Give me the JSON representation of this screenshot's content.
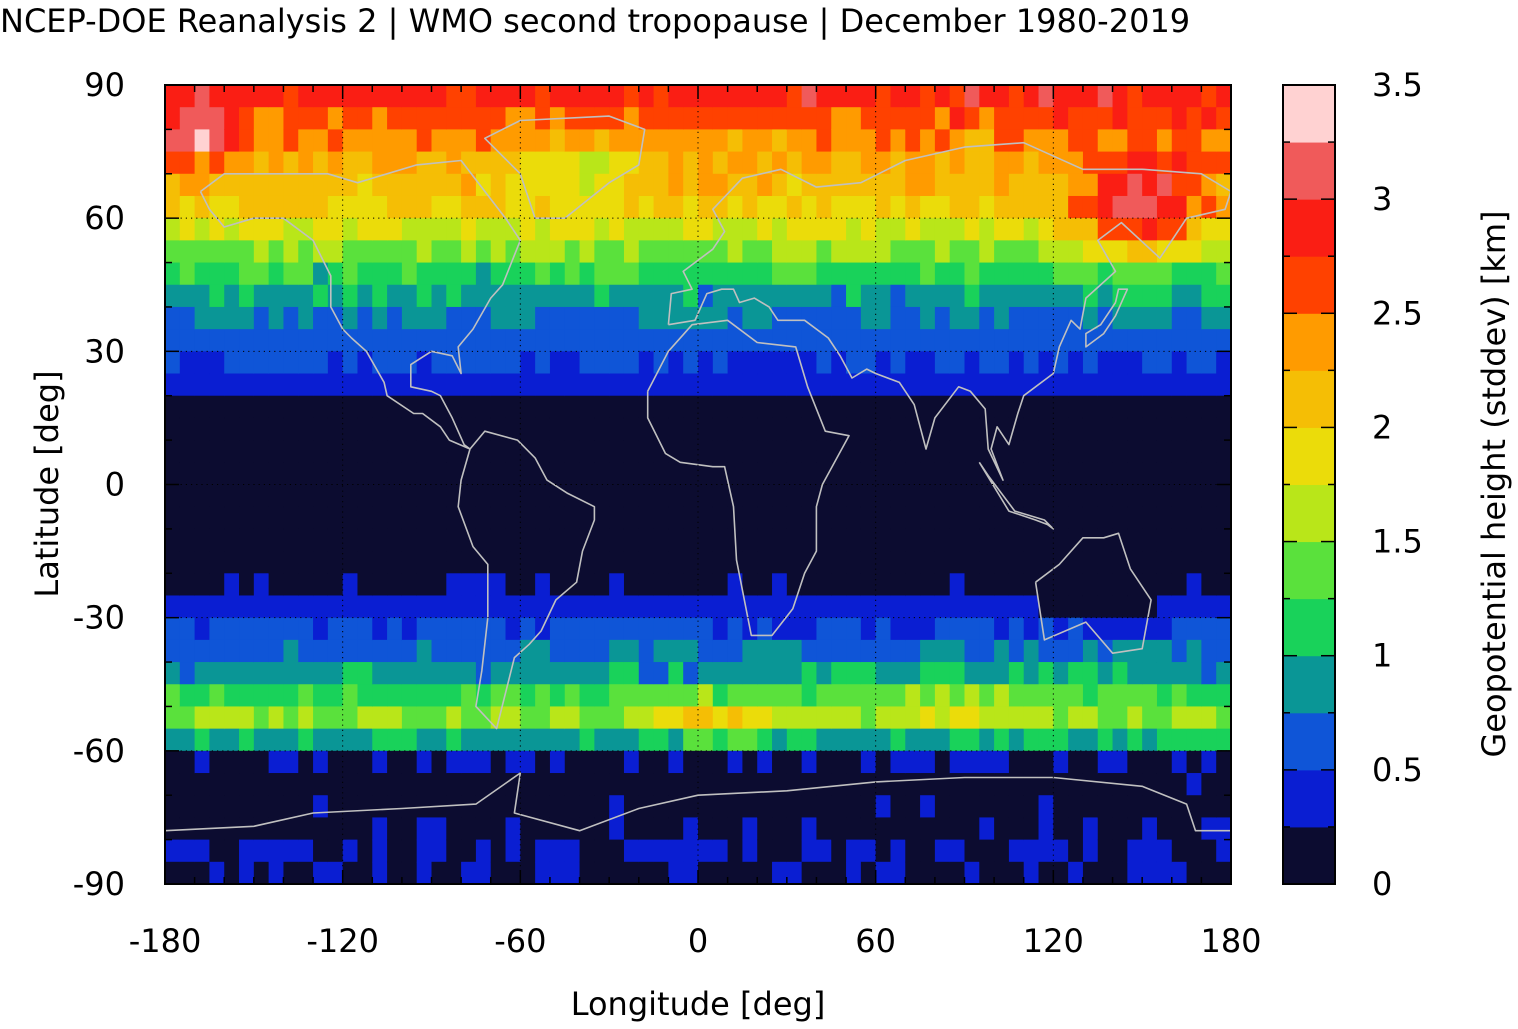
{
  "chart_data": {
    "type": "heatmap",
    "title": "NCEP-DOE Reanalysis 2 | WMO second tropopause | December 1980-2019",
    "xlabel": "Longitude [deg]",
    "ylabel": "Latitude [deg]",
    "colorbar_label": "Geopotential height (stddev) [km]",
    "xlim": [
      -180,
      180
    ],
    "ylim": [
      -90,
      90
    ],
    "xticks": [
      "-180",
      "-120",
      "-60",
      "0",
      "60",
      "120",
      "180"
    ],
    "yticks": [
      "90",
      "60",
      "30",
      "0",
      "-30",
      "-60",
      "-90"
    ],
    "grid": "dotted",
    "colorbar": {
      "range": [
        0,
        3.5
      ],
      "tick_labels": [
        "0",
        "0.5",
        "1",
        "1.5",
        "2",
        "2.5",
        "3",
        "3.5"
      ],
      "levels": [
        0,
        0.25,
        0.5,
        0.75,
        1.0,
        1.25,
        1.5,
        1.75,
        2.0,
        2.25,
        2.5,
        2.75,
        3.0,
        3.25,
        3.5
      ],
      "colors": [
        "#0c0c30",
        "#0a1ed2",
        "#0f55d7",
        "#0a9696",
        "#19d25a",
        "#5ae13c",
        "#b9e619",
        "#ebdc0a",
        "#f5be05",
        "#ff9b00",
        "#ff4100",
        "#fa1e14",
        "#f05a5a",
        "#ffd2d2"
      ]
    },
    "zonal_mean_profile": {
      "lat": [
        90,
        85,
        80,
        75,
        70,
        65,
        60,
        55,
        50,
        45,
        40,
        35,
        30,
        25,
        20,
        15,
        10,
        5,
        0,
        -5,
        -10,
        -15,
        -20,
        -25,
        -30,
        -35,
        -40,
        -45,
        -50,
        -55,
        -60,
        -65,
        -70,
        -75,
        -80,
        -85,
        -90
      ],
      "value": [
        3.0,
        2.7,
        2.5,
        2.3,
        2.2,
        2.1,
        1.9,
        1.6,
        1.3,
        1.0,
        0.8,
        0.7,
        0.55,
        0.45,
        0.3,
        0.1,
        0.05,
        0.05,
        0.05,
        0.05,
        0.05,
        0.1,
        0.15,
        0.3,
        0.45,
        0.6,
        0.8,
        1.0,
        1.4,
        1.6,
        0.3,
        0.1,
        0.1,
        0.1,
        0.2,
        0.3,
        0.1
      ]
    }
  },
  "colors": {
    "coastline": "#c0c0c0",
    "grid": "#000000"
  }
}
